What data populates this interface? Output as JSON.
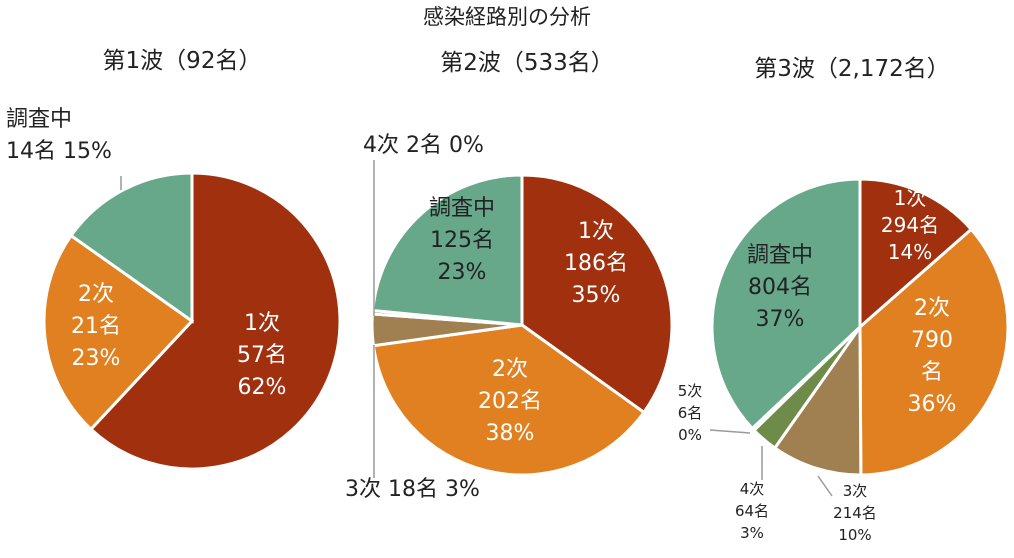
{
  "title": "感染経路別の分析",
  "colors": {
    "first": "#A0300E",
    "second": "#E08020",
    "third": "#A08050",
    "fourth": "#6E8B4A",
    "fifth": "#4F7A3A",
    "investigating": "#68A88A",
    "white": "#FFFFFF",
    "text": "#222222"
  },
  "chart_data": [
    {
      "type": "pie",
      "title": "第1波（92名）",
      "slices": [
        {
          "key": "first",
          "count": 57,
          "label_lines": [
            "1次",
            "57名",
            "62%"
          ]
        },
        {
          "key": "second",
          "count": 21,
          "label_lines": [
            "2次",
            "21名",
            "23%"
          ]
        },
        {
          "key": "investigating",
          "count": 14,
          "label_lines": [
            "調査中",
            "14名 15%"
          ]
        }
      ]
    },
    {
      "type": "pie",
      "title": "第2波（533名）",
      "slices": [
        {
          "key": "first",
          "count": 186,
          "label_lines": [
            "1次",
            "186名",
            "35%"
          ]
        },
        {
          "key": "second",
          "count": 202,
          "label_lines": [
            "2次",
            "202名",
            "38%"
          ]
        },
        {
          "key": "third",
          "count": 18,
          "label_lines": [
            "3次 18名 3%"
          ]
        },
        {
          "key": "fourth",
          "count": 2,
          "label_lines": [
            "4次 2名 0%"
          ]
        },
        {
          "key": "investigating",
          "count": 125,
          "label_lines": [
            "調査中",
            "125名",
            "23%"
          ]
        }
      ]
    },
    {
      "type": "pie",
      "title": "第3波（2,172名）",
      "slices": [
        {
          "key": "first",
          "count": 294,
          "label_lines": [
            "1次",
            "294名",
            "14%"
          ]
        },
        {
          "key": "second",
          "count": 790,
          "label_lines": [
            "2次",
            "790",
            "名",
            "36%"
          ]
        },
        {
          "key": "third",
          "count": 214,
          "label_lines": [
            "3次",
            "214名",
            "10%"
          ]
        },
        {
          "key": "fourth",
          "count": 64,
          "label_lines": [
            "4次",
            "64名",
            "3%"
          ]
        },
        {
          "key": "fifth",
          "count": 6,
          "label_lines": [
            "5次",
            "6名",
            "0%"
          ]
        },
        {
          "key": "investigating",
          "count": 804,
          "label_lines": [
            "調査中",
            "804名",
            "37%"
          ]
        }
      ]
    }
  ]
}
